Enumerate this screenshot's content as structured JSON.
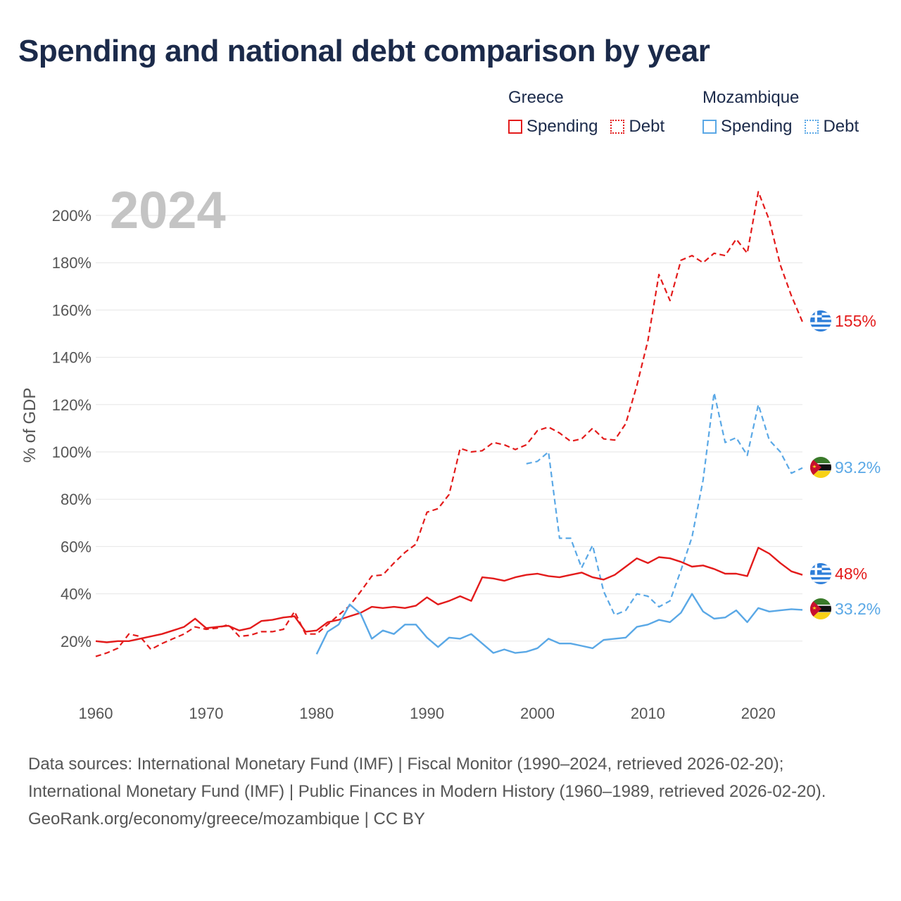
{
  "title": "Spending and national debt comparison by year",
  "legend": {
    "groups": [
      {
        "name": "Greece",
        "color": "#e31b1b",
        "items": [
          {
            "label": "Spending",
            "style": "solid"
          },
          {
            "label": "Debt",
            "style": "dotted"
          }
        ]
      },
      {
        "name": "Mozambique",
        "color": "#5aa8e6",
        "items": [
          {
            "label": "Spending",
            "style": "solid"
          },
          {
            "label": "Debt",
            "style": "dotted"
          }
        ]
      }
    ]
  },
  "year_label": "2024",
  "colors": {
    "greece": "#e31b1b",
    "mozambique": "#5aa8e6",
    "grid": "#e6e6e6",
    "axis_text": "#555555",
    "year_label": "#c4c4c4"
  },
  "chart_data": {
    "type": "line",
    "title": "Spending and national debt comparison by year",
    "ylabel": "% of GDP",
    "xlabel": "",
    "xlim": [
      1960,
      2024
    ],
    "ylim": [
      0,
      210
    ],
    "x_ticks": [
      1960,
      1970,
      1980,
      1990,
      2000,
      2010,
      2020
    ],
    "y_ticks": [
      20,
      40,
      60,
      80,
      100,
      120,
      140,
      160,
      180,
      200
    ],
    "y_tick_labels": [
      "20%",
      "40%",
      "60%",
      "80%",
      "100%",
      "120%",
      "140%",
      "160%",
      "180%",
      "200%"
    ],
    "series": [
      {
        "name": "Greece Debt",
        "country": "greece",
        "style": "dashed",
        "end_label": "155%",
        "x": [
          1960,
          1961,
          1962,
          1963,
          1964,
          1965,
          1966,
          1967,
          1968,
          1969,
          1970,
          1971,
          1972,
          1973,
          1974,
          1975,
          1976,
          1977,
          1978,
          1979,
          1980,
          1981,
          1982,
          1983,
          1984,
          1985,
          1986,
          1987,
          1988,
          1989,
          1990,
          1991,
          1992,
          1993,
          1994,
          1995,
          1996,
          1997,
          1998,
          1999,
          2000,
          2001,
          2002,
          2003,
          2004,
          2005,
          2006,
          2007,
          2008,
          2009,
          2010,
          2011,
          2012,
          2013,
          2014,
          2015,
          2016,
          2017,
          2018,
          2019,
          2020,
          2021,
          2022,
          2023,
          2024
        ],
        "values": [
          13.5,
          15,
          17,
          23,
          22,
          16.5,
          19,
          21,
          23,
          26,
          25,
          25.5,
          27,
          22,
          22.5,
          24,
          24,
          25,
          32.5,
          23,
          23,
          27,
          31,
          35,
          41,
          47.5,
          48,
          53,
          57.5,
          61,
          74.5,
          76,
          82,
          101.5,
          100,
          100.5,
          104,
          103,
          101,
          103,
          109,
          110.5,
          108,
          104.5,
          105.5,
          110,
          105.5,
          105,
          112,
          128,
          147,
          175,
          164,
          181,
          183,
          180,
          184,
          183,
          190,
          184,
          210,
          198,
          179,
          166,
          155
        ]
      },
      {
        "name": "Mozambique Debt",
        "country": "mozambique",
        "style": "dashed",
        "end_label": "93.2%",
        "x": [
          1999,
          2000,
          2001,
          2002,
          2003,
          2004,
          2005,
          2006,
          2007,
          2008,
          2009,
          2010,
          2011,
          2012,
          2013,
          2014,
          2015,
          2016,
          2017,
          2018,
          2019,
          2020,
          2021,
          2022,
          2023,
          2024
        ],
        "values": [
          95,
          96,
          100,
          63.5,
          63.5,
          51,
          60.5,
          41,
          31,
          33,
          40,
          39,
          34.5,
          37,
          50,
          64,
          88,
          125,
          104,
          106,
          98.5,
          120,
          105,
          100,
          91,
          93.2
        ]
      },
      {
        "name": "Greece Spending",
        "country": "greece",
        "style": "solid",
        "end_label": "48%",
        "x": [
          1960,
          1961,
          1962,
          1963,
          1964,
          1965,
          1966,
          1967,
          1968,
          1969,
          1970,
          1971,
          1972,
          1973,
          1974,
          1975,
          1976,
          1977,
          1978,
          1979,
          1980,
          1981,
          1982,
          1983,
          1984,
          1985,
          1986,
          1987,
          1988,
          1989,
          1990,
          1991,
          1992,
          1993,
          1994,
          1995,
          1996,
          1997,
          1998,
          1999,
          2000,
          2001,
          2002,
          2003,
          2004,
          2005,
          2006,
          2007,
          2008,
          2009,
          2010,
          2011,
          2012,
          2013,
          2014,
          2015,
          2016,
          2017,
          2018,
          2019,
          2020,
          2021,
          2022,
          2023,
          2024
        ],
        "values": [
          20,
          19.5,
          20,
          20,
          21,
          22,
          23,
          24.5,
          26,
          29.5,
          25.5,
          26,
          26.5,
          24.5,
          25.5,
          28.5,
          29,
          30,
          30.5,
          24,
          24.5,
          28,
          29,
          30.5,
          32,
          34.5,
          34,
          34.5,
          34,
          35,
          38.5,
          35.5,
          37,
          39,
          37,
          47,
          46.5,
          45.5,
          47,
          48,
          48.5,
          47.5,
          47,
          48,
          49,
          47,
          46,
          48,
          51.5,
          55,
          53,
          55.5,
          55,
          53.5,
          51.5,
          52,
          50.5,
          48.5,
          48.5,
          47.5,
          59.5,
          57,
          53,
          49.5,
          48
        ]
      },
      {
        "name": "Mozambique Spending",
        "country": "mozambique",
        "style": "solid",
        "end_label": "33.2%",
        "x": [
          1980,
          1981,
          1982,
          1983,
          1984,
          1985,
          1986,
          1987,
          1988,
          1989,
          1990,
          1991,
          1992,
          1993,
          1994,
          1995,
          1996,
          1997,
          1998,
          1999,
          2000,
          2001,
          2002,
          2003,
          2004,
          2005,
          2006,
          2007,
          2008,
          2009,
          2010,
          2011,
          2012,
          2013,
          2014,
          2015,
          2016,
          2017,
          2018,
          2019,
          2020,
          2021,
          2022,
          2023,
          2024
        ],
        "values": [
          14.5,
          24,
          27,
          35.5,
          31.5,
          21,
          24.5,
          23,
          27,
          27,
          21.5,
          17.5,
          21.5,
          21,
          23,
          19,
          15,
          16.5,
          15,
          15.5,
          17,
          21,
          19,
          19,
          18,
          17,
          20.5,
          21,
          21.5,
          26,
          27,
          29,
          28,
          32,
          40,
          32.5,
          29.5,
          30,
          33,
          28,
          34,
          32.5,
          33,
          33.5,
          33.2
        ]
      }
    ]
  },
  "source": {
    "line1": "Data sources: International Monetary Fund (IMF) | Fiscal Monitor (1990–2024, retrieved 2026-02-20); International Monetary Fund (IMF) | Public Finances in Modern History (1960–1989, retrieved 2026-02-20).",
    "line2": "GeoRank.org/economy/greece/mozambique | CC BY"
  }
}
